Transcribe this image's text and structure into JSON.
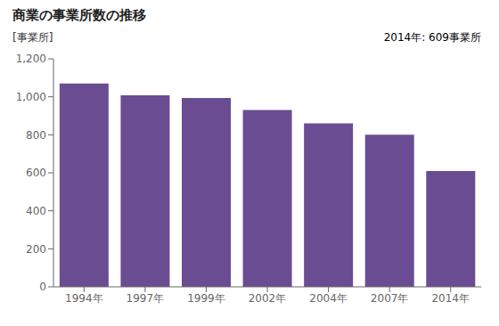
{
  "chart_data": {
    "type": "bar",
    "title": "商業の事業所数の推移",
    "ylabel": "[事業所]",
    "annotation": "2014年: 609事業所",
    "categories": [
      "1994年",
      "1997年",
      "1999年",
      "2002年",
      "2004年",
      "2007年",
      "2014年"
    ],
    "values": [
      1070,
      1008,
      994,
      930,
      860,
      800,
      609
    ],
    "color": "#6A4C93",
    "ylim": [
      0,
      1200
    ],
    "yticks": [
      0,
      200,
      400,
      600,
      800,
      {
        "value": 1000,
        "label": "1,000"
      },
      {
        "value": 1200,
        "label": "1,200"
      }
    ],
    "grid": false
  }
}
